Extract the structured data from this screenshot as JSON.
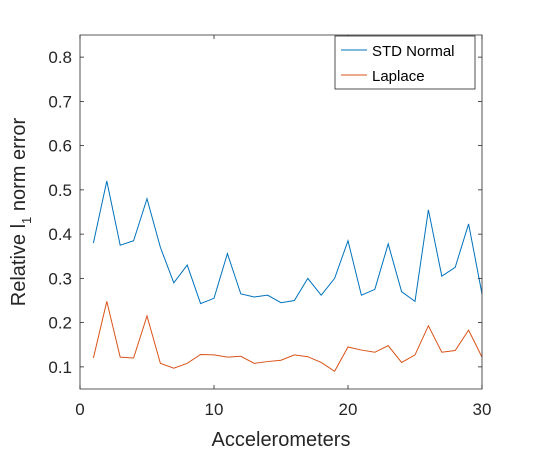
{
  "chart_data": {
    "type": "line",
    "xlabel": "Accelerometers",
    "ylabel_prefix": "Relative l",
    "ylabel_subscript": "1",
    "ylabel_suffix": " norm error",
    "xlim": [
      0,
      30
    ],
    "ylim": [
      0.05,
      0.85
    ],
    "xticks": [
      0,
      10,
      20,
      30
    ],
    "yticks": [
      0.1,
      0.2,
      0.3,
      0.4,
      0.5,
      0.6,
      0.7,
      0.8
    ],
    "xtick_labels": [
      "0",
      "10",
      "20",
      "30"
    ],
    "ytick_labels": [
      "0.1",
      "0.2",
      "0.3",
      "0.4",
      "0.5",
      "0.6",
      "0.7",
      "0.8"
    ],
    "grid": false,
    "legend_position": "top-right",
    "x": [
      1,
      2,
      3,
      4,
      5,
      6,
      7,
      8,
      9,
      10,
      11,
      12,
      13,
      14,
      15,
      16,
      17,
      18,
      19,
      20,
      21,
      22,
      23,
      24,
      25,
      26,
      27,
      28,
      29,
      30
    ],
    "series": [
      {
        "name": "STD Normal",
        "color": "#0072bd",
        "values": [
          0.38,
          0.52,
          0.375,
          0.385,
          0.48,
          0.37,
          0.29,
          0.33,
          0.243,
          0.255,
          0.356,
          0.265,
          0.258,
          0.262,
          0.245,
          0.25,
          0.3,
          0.262,
          0.3,
          0.385,
          0.262,
          0.275,
          0.378,
          0.27,
          0.248,
          0.455,
          0.305,
          0.325,
          0.423,
          0.265
        ]
      },
      {
        "name": "Laplace",
        "color": "#d95319",
        "values": [
          0.12,
          0.248,
          0.122,
          0.12,
          0.215,
          0.108,
          0.097,
          0.108,
          0.128,
          0.127,
          0.122,
          0.124,
          0.108,
          0.112,
          0.115,
          0.127,
          0.123,
          0.11,
          0.09,
          0.145,
          0.138,
          0.133,
          0.148,
          0.11,
          0.127,
          0.193,
          0.133,
          0.137,
          0.183,
          0.122
        ]
      }
    ]
  }
}
